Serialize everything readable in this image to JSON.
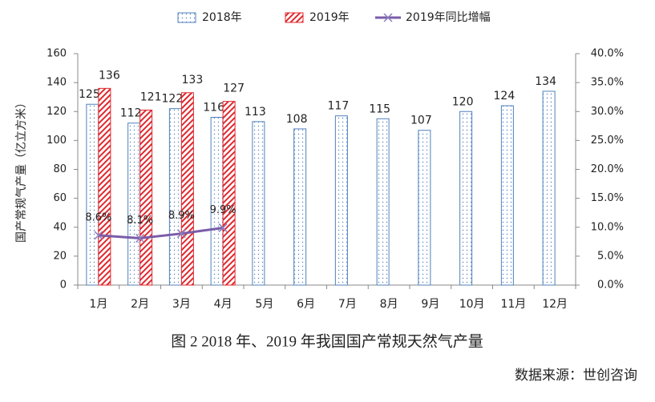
{
  "chart_data": {
    "type": "bar",
    "title": "图 2 2018 年、2019 年我国国产常规天然气产量",
    "source": "数据来源：世创咨询",
    "ylabel": "国产常规气产量（亿立方米）",
    "categories": [
      "1月",
      "2月",
      "3月",
      "4月",
      "5月",
      "6月",
      "7月",
      "8月",
      "9月",
      "10月",
      "11月",
      "12月"
    ],
    "series": [
      {
        "name": "2018年",
        "color": "#4f81bd",
        "values": [
          125,
          112,
          122,
          116,
          113,
          108,
          117,
          115,
          107,
          120,
          124,
          134
        ]
      },
      {
        "name": "2019年",
        "color": "#e0282e",
        "values": [
          136,
          121,
          133,
          127,
          null,
          null,
          null,
          null,
          null,
          null,
          null,
          null
        ]
      },
      {
        "name": "2019年同比增幅",
        "color": "#7a5ca8",
        "axis": "y2",
        "type": "line",
        "values": [
          8.6,
          8.1,
          8.9,
          9.9,
          null,
          null,
          null,
          null,
          null,
          null,
          null,
          null
        ],
        "value_labels": [
          "8.6%",
          "8.1%",
          "8.9%",
          "9.9%",
          null,
          null,
          null,
          null,
          null,
          null,
          null,
          null
        ]
      }
    ],
    "ylim": [
      0,
      160
    ],
    "yticks": [
      0,
      20,
      40,
      60,
      80,
      100,
      120,
      140,
      160
    ],
    "y2lim": [
      0,
      40
    ],
    "y2ticks": [
      {
        "value": 0,
        "label": "0.0%"
      },
      {
        "value": 5,
        "label": "5.0%"
      },
      {
        "value": 10,
        "label": "10.0%"
      },
      {
        "value": 15,
        "label": "15.0%"
      },
      {
        "value": 20,
        "label": "20.0%"
      },
      {
        "value": 25,
        "label": "25.0%"
      },
      {
        "value": 30,
        "label": "30.0%"
      },
      {
        "value": 35,
        "label": "35.0%"
      },
      {
        "value": 40,
        "label": "40.0%"
      }
    ],
    "grid": false
  }
}
